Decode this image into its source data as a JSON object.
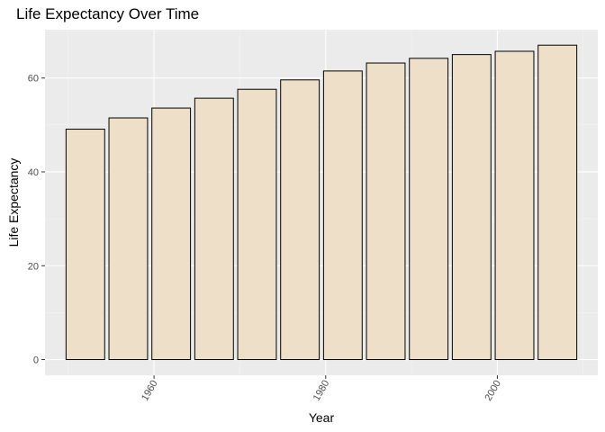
{
  "chart_data": {
    "type": "bar",
    "title": "Life Expectancy Over Time",
    "xlabel": "Year",
    "ylabel": "Life Expectancy",
    "x": [
      1952,
      1957,
      1962,
      1967,
      1972,
      1977,
      1982,
      1987,
      1992,
      1997,
      2002,
      2007
    ],
    "values": [
      49.1,
      51.5,
      53.6,
      55.7,
      57.6,
      59.6,
      61.5,
      63.2,
      64.2,
      65.0,
      65.7,
      67.0
    ],
    "xlim": [
      1947.3,
      2011.7
    ],
    "ylim": [
      -3.35,
      70.3
    ],
    "x_ticks": [
      1960,
      1980,
      2000
    ],
    "x_tick_labels": [
      "1960",
      "1980",
      "2000"
    ],
    "y_ticks": [
      0,
      20,
      40,
      60
    ],
    "y_tick_labels": [
      "0",
      "20",
      "40",
      "60"
    ],
    "bar_fill": "#eee0c8",
    "bar_stroke": "#000000",
    "panel_background": "#ebebeb",
    "grid": true
  }
}
